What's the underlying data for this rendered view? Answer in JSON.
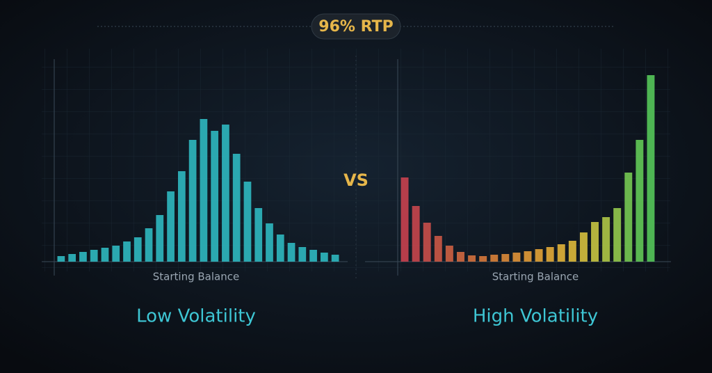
{
  "badge": "96% RTP",
  "vs": "VS",
  "chart_data": [
    {
      "type": "bar",
      "title": "Low Volatility",
      "x_label": "Starting Balance",
      "color": "#2fb8c0",
      "values": [
        8,
        11,
        14,
        17,
        20,
        23,
        29,
        35,
        48,
        67,
        101,
        130,
        175,
        205,
        188,
        197,
        155,
        115,
        77,
        55,
        39,
        27,
        21,
        17,
        13,
        10
      ]
    },
    {
      "type": "bar",
      "title": "High Volatility",
      "x_label": "Starting Balance",
      "values": [
        121,
        80,
        56,
        37,
        23,
        14,
        9,
        8,
        10,
        11,
        13,
        15,
        18,
        21,
        25,
        30,
        42,
        57,
        64,
        77,
        128,
        175,
        268
      ],
      "colors": [
        "#c9414f",
        "#c8464d",
        "#c94f4a",
        "#cb5846",
        "#cd6043",
        "#d06840",
        "#d3703d",
        "#d6783b",
        "#d98139",
        "#dc8a38",
        "#df9237",
        "#e19a36",
        "#e2a236",
        "#e2aa37",
        "#e1b238",
        "#deb93a",
        "#d6bf3d",
        "#c6c441",
        "#aec746",
        "#93c94c",
        "#76c952",
        "#62c957",
        "#55c85a"
      ]
    }
  ]
}
